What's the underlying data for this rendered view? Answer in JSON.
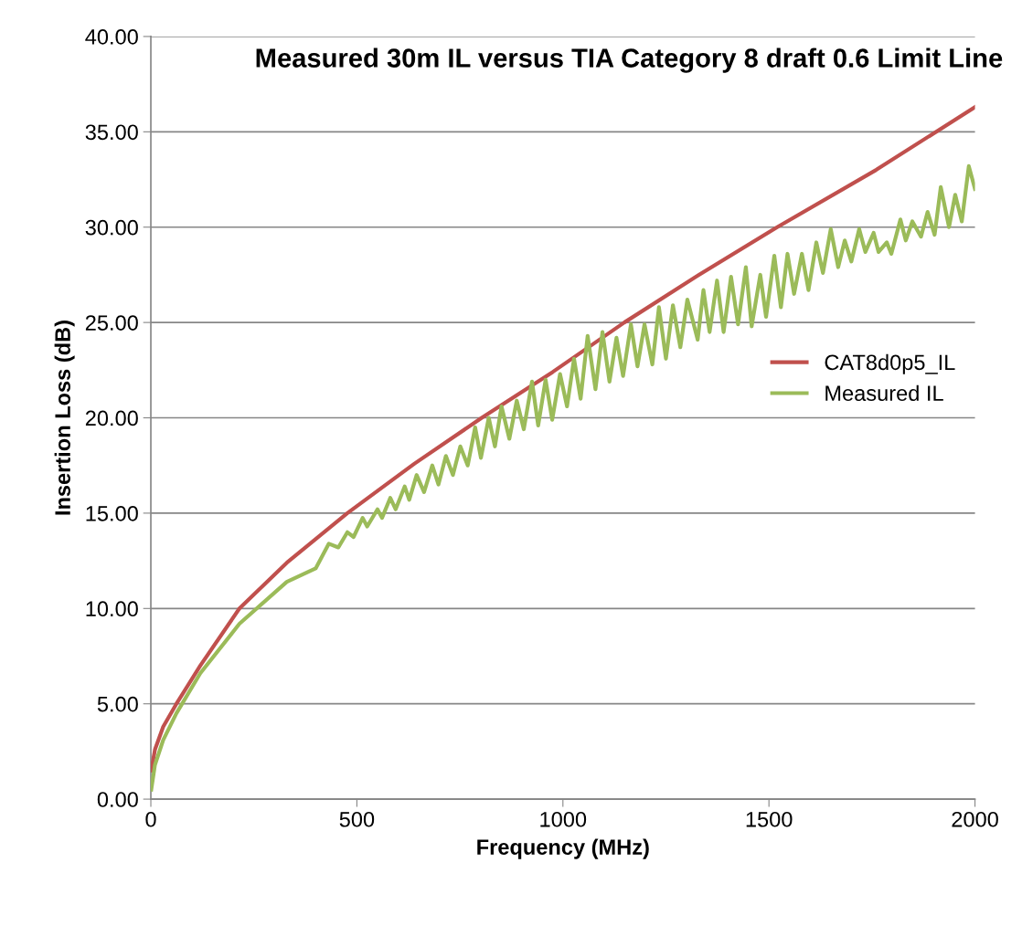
{
  "chart_data": {
    "type": "line",
    "title": "Measured 30m IL versus TIA Category 8 draft 0.6 Limit Line",
    "xlabel": "Frequency (MHz)",
    "ylabel": "Insertion Loss (dB)",
    "xlim": [
      0,
      2000
    ],
    "xticks": [
      0,
      500,
      1000,
      1500,
      2000
    ],
    "ylim": [
      0,
      40
    ],
    "yticks": [
      {
        "value": 0,
        "label": "0.00"
      },
      {
        "value": 5,
        "label": "5.00"
      },
      {
        "value": 10,
        "label": "10.00"
      },
      {
        "value": 15,
        "label": "15.00"
      },
      {
        "value": 20,
        "label": "20.00"
      },
      {
        "value": 25,
        "label": "25.00"
      },
      {
        "value": 30,
        "label": "30.00"
      },
      {
        "value": 35,
        "label": "35.00"
      },
      {
        "value": 40,
        "label": "40.00"
      }
    ],
    "grid": "y",
    "legend": "right",
    "marker": "none",
    "line_style": "solid",
    "series": [
      {
        "name": "CAT8d0p5_IL",
        "color": "#c0504d",
        "x": [
          1,
          10,
          30,
          62,
          120,
          215,
          330,
          477,
          640,
          803,
          975,
          1149,
          1330,
          1520,
          1760,
          2000
        ],
        "values": [
          1.5,
          2.6,
          3.8,
          5.0,
          7.0,
          10.0,
          12.4,
          15.0,
          17.6,
          20.0,
          22.4,
          25.0,
          27.5,
          30.0,
          33.0,
          36.3
        ]
      },
      {
        "name": "Measured IL",
        "color": "#9bbb59",
        "x": [
          1,
          10,
          30,
          62,
          120,
          215,
          330,
          400,
          432,
          455,
          477,
          492,
          514,
          525,
          550,
          561,
          581,
          594,
          616,
          627,
          645,
          663,
          683,
          698,
          716,
          733,
          751,
          769,
          787,
          801,
          820,
          835,
          851,
          870,
          888,
          905,
          925,
          940,
          958,
          974,
          993,
          1010,
          1027,
          1043,
          1060,
          1079,
          1096,
          1113,
          1130,
          1146,
          1165,
          1181,
          1198,
          1217,
          1233,
          1250,
          1267,
          1285,
          1302,
          1327,
          1341,
          1356,
          1374,
          1390,
          1408,
          1425,
          1444,
          1458,
          1479,
          1493,
          1513,
          1529,
          1545,
          1561,
          1580,
          1596,
          1615,
          1631,
          1650,
          1668,
          1684,
          1700,
          1719,
          1734,
          1754,
          1766,
          1786,
          1797,
          1819,
          1832,
          1848,
          1869,
          1885,
          1902,
          1917,
          1937,
          1952,
          1968,
          1985,
          2000
        ],
        "values": [
          0.5,
          1.8,
          3.1,
          4.5,
          6.6,
          9.2,
          11.4,
          12.1,
          13.4,
          13.2,
          14.0,
          13.75,
          14.75,
          14.3,
          15.2,
          14.75,
          15.8,
          15.2,
          16.4,
          15.7,
          17.0,
          16.1,
          17.5,
          16.5,
          18.0,
          17.0,
          18.5,
          17.5,
          19.5,
          17.9,
          20.0,
          18.5,
          20.6,
          18.9,
          20.9,
          19.4,
          21.9,
          19.6,
          22.0,
          19.9,
          22.3,
          20.6,
          23.1,
          21.0,
          24.3,
          21.5,
          24.5,
          21.9,
          24.2,
          22.2,
          24.9,
          22.7,
          24.9,
          22.8,
          25.8,
          23.1,
          25.9,
          23.7,
          26.2,
          24.1,
          26.7,
          24.5,
          27.2,
          24.5,
          27.4,
          24.9,
          27.9,
          24.8,
          27.5,
          25.3,
          28.5,
          25.8,
          28.6,
          26.5,
          28.6,
          26.7,
          29.2,
          27.6,
          29.9,
          27.9,
          29.3,
          28.2,
          29.9,
          28.7,
          29.7,
          28.7,
          29.2,
          28.6,
          30.4,
          29.3,
          30.3,
          29.5,
          30.8,
          29.6,
          32.1,
          30.0,
          31.7,
          30.3,
          33.2,
          32.0
        ]
      }
    ]
  }
}
